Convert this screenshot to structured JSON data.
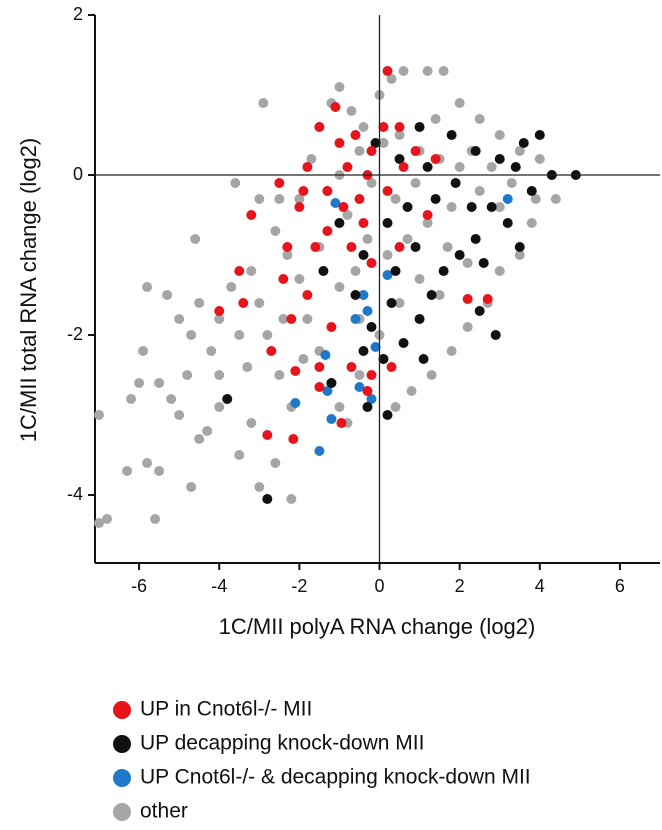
{
  "chart_data": {
    "type": "scatter",
    "xlabel": "1C/MII polyA RNA change (log2)",
    "ylabel": "1C/MII total RNA change (log2)",
    "xlim": [
      -7.1,
      7.0
    ],
    "ylim": [
      -4.85,
      2.0
    ],
    "xticks": [
      -6,
      -4,
      -2,
      0,
      2,
      4,
      6
    ],
    "yticks": [
      -4,
      -2,
      0,
      2
    ],
    "zero_lines": true,
    "series": [
      {
        "name": "UP in Cnot6l-/- MII",
        "color": "#e8141b",
        "x": [
          0.2,
          -1.1,
          -1.5,
          -0.6,
          -0.2,
          0.5,
          -1.8,
          -2.5,
          -3.2,
          -3.5,
          -4,
          -3.4,
          -2.3,
          -2,
          -1.3,
          -0.9,
          -0.4,
          -1.6,
          -0.7,
          -1.8,
          -2.2,
          -1.2,
          -2.7,
          -2.1,
          -1.5,
          -1.5,
          -0.7,
          -0.3,
          -0.2,
          0.3,
          -2.8,
          -2.15,
          -0.95,
          0.2,
          0.6,
          0.9,
          1.4,
          1.2,
          2.2,
          2.7,
          -1,
          -0.3,
          -1.9,
          -1.3,
          -0.2,
          -2.4,
          0.5,
          -0.5,
          0.1,
          -0.8
        ],
        "values": [
          1.3,
          0.85,
          0.6,
          0.5,
          0.3,
          0.6,
          0.1,
          -0.1,
          -0.5,
          -1.2,
          -1.7,
          -1.6,
          -0.9,
          -0.4,
          -0.2,
          -0.4,
          -0.6,
          -0.9,
          -0.9,
          -1.5,
          -1.8,
          -1.9,
          -2.2,
          -2.45,
          -2.4,
          -2.65,
          -2.4,
          -2.7,
          -2.5,
          -2.4,
          -3.25,
          -3.3,
          -3.1,
          -0.2,
          0.1,
          0.3,
          0.2,
          -0.5,
          -1.55,
          -1.55,
          0.4,
          0,
          -0.2,
          -0.7,
          -1.1,
          -1.3,
          -0.9,
          -0.3,
          0.6,
          0.1
        ]
      },
      {
        "name": "UP decapping knock-down MII",
        "color": "#111111",
        "x": [
          -2.8,
          -3.8,
          -1.2,
          -0.3,
          0.2,
          0.3,
          0.6,
          1,
          1.3,
          1.6,
          2,
          2.4,
          2.8,
          3.2,
          3.5,
          2.9,
          2.5,
          4.3,
          4.9,
          3.8,
          3.6,
          3,
          2.4,
          1.8,
          1,
          0.5,
          0.2,
          -0.4,
          -1,
          -0.6,
          -0.2,
          0.4,
          0.9,
          1.4,
          1.9,
          2.3,
          1.1,
          0.1,
          -0.4,
          -0.1,
          0.7,
          1.2,
          -1.4,
          3.4,
          4,
          2.6
        ],
        "values": [
          -4.05,
          -2.8,
          -2.6,
          -2.9,
          -3,
          -1.6,
          -2.1,
          -1.8,
          -1.5,
          -1.2,
          -1,
          -0.8,
          -0.4,
          -0.6,
          -0.9,
          -2,
          -1.7,
          0,
          0,
          -0.2,
          0.4,
          0.2,
          0.3,
          0.5,
          0.6,
          0.2,
          -0.6,
          -1,
          -0.6,
          -1.5,
          -1.9,
          -1.2,
          -0.9,
          -0.3,
          -0.1,
          -0.4,
          -2.3,
          -2.3,
          -2.2,
          0.4,
          -0.4,
          0.1,
          -1.2,
          0.1,
          0.5,
          -1.1
        ]
      },
      {
        "name": "UP Cnot6l-/- & decapping knock-down MII",
        "color": "#1f78c8",
        "x": [
          -2.1,
          -1.2,
          -1.5,
          -0.2,
          -0.5,
          -1.3,
          -1.35,
          -0.6,
          -0.3,
          -0.4,
          -0.1,
          0.2,
          -1.1,
          3.2
        ],
        "values": [
          -2.85,
          -3.05,
          -3.45,
          -2.8,
          -2.65,
          -2.7,
          -2.25,
          -1.8,
          -1.7,
          -1.5,
          -2.15,
          -1.25,
          -0.35,
          -0.3
        ]
      },
      {
        "name": "other",
        "color": "#a6a6a6",
        "x": [
          -7,
          -6.8,
          -7,
          -6.3,
          -5.6,
          -5.8,
          -5.5,
          -4.7,
          -4.5,
          -6,
          -5.9,
          -6.2,
          -5.5,
          -5.2,
          -5,
          -4.8,
          -4.3,
          -4,
          -3.5,
          -3.2,
          -3,
          -2.2,
          -2.6,
          -5.8,
          -5.3,
          -5,
          -4.7,
          -4.5,
          -4.2,
          -4,
          -3.7,
          -3.5,
          -3.3,
          -3,
          -2.8,
          -2.5,
          -2.2,
          -4.6,
          -3.6,
          -3,
          -2.5,
          -2.9,
          -2.6,
          -2.3,
          -2,
          -1.8,
          -1.5,
          -1.2,
          -1,
          -0.8,
          -0.5,
          -2,
          -1.7,
          -1.5,
          -1.2,
          -1,
          -0.7,
          -0.4,
          0,
          0.3,
          0.6,
          1.2,
          1.6,
          2,
          2.5,
          3,
          3.5,
          4,
          4.3,
          4.4,
          3.8,
          3.5,
          3,
          2.7,
          2.2,
          1.8,
          1.3,
          0.8,
          0.4,
          -1,
          -0.5,
          0.5,
          1,
          1.5,
          2,
          2.5,
          3,
          -0.8,
          -0.3,
          0.2,
          0.7,
          1.2,
          1.7,
          2.2,
          -1.5,
          -1,
          -0.5,
          0,
          0.5,
          1,
          1.5,
          -1.3,
          -0.6,
          0.4,
          0.9,
          1.8,
          2.3,
          2.8,
          -2.4,
          -1.9,
          -3.2,
          -4,
          1.4,
          0.1,
          -0.2,
          3.3,
          3.9
        ],
        "values": [
          -4.35,
          -4.3,
          -3,
          -3.7,
          -4.3,
          -3.6,
          -3.7,
          -3.9,
          -3.3,
          -2.6,
          -2.2,
          -2.8,
          -2.6,
          -2.8,
          -3,
          -2.5,
          -3.2,
          -2.9,
          -3.5,
          -3.1,
          -3.9,
          -4.05,
          -3.6,
          -1.4,
          -1.5,
          -1.8,
          -2,
          -1.6,
          -2.2,
          -1.8,
          -1.4,
          -2,
          -2.4,
          -1.6,
          -2,
          -2.5,
          -2.9,
          -0.8,
          -0.1,
          -0.3,
          -0.3,
          0.9,
          -0.7,
          -1,
          -1.3,
          -1.8,
          -2.2,
          -2.6,
          -2.9,
          -3.1,
          -2.5,
          -0.3,
          0.2,
          0.6,
          0.9,
          1.1,
          0.8,
          0.6,
          1,
          1.2,
          1.3,
          1.3,
          1.3,
          0.9,
          0.7,
          0.5,
          0.3,
          0.2,
          0,
          -0.3,
          -0.6,
          -1,
          -1.2,
          -1.6,
          -1.9,
          -2.2,
          -2.5,
          -2.7,
          -2.9,
          0,
          0.3,
          0.5,
          0.3,
          0.2,
          0.1,
          -0.2,
          -0.4,
          -0.5,
          -0.8,
          -1,
          -0.8,
          -0.6,
          -0.9,
          -1.1,
          -0.9,
          -1.4,
          -1.8,
          -2,
          -1.6,
          -1.3,
          -1.5,
          -0.2,
          -1.2,
          -0.3,
          -0.1,
          -0.4,
          0.3,
          0.1,
          -1.8,
          -2.3,
          -1.2,
          -2.5,
          0.7,
          0.4,
          -0.1,
          -0.1,
          -0.3
        ]
      }
    ]
  }
}
